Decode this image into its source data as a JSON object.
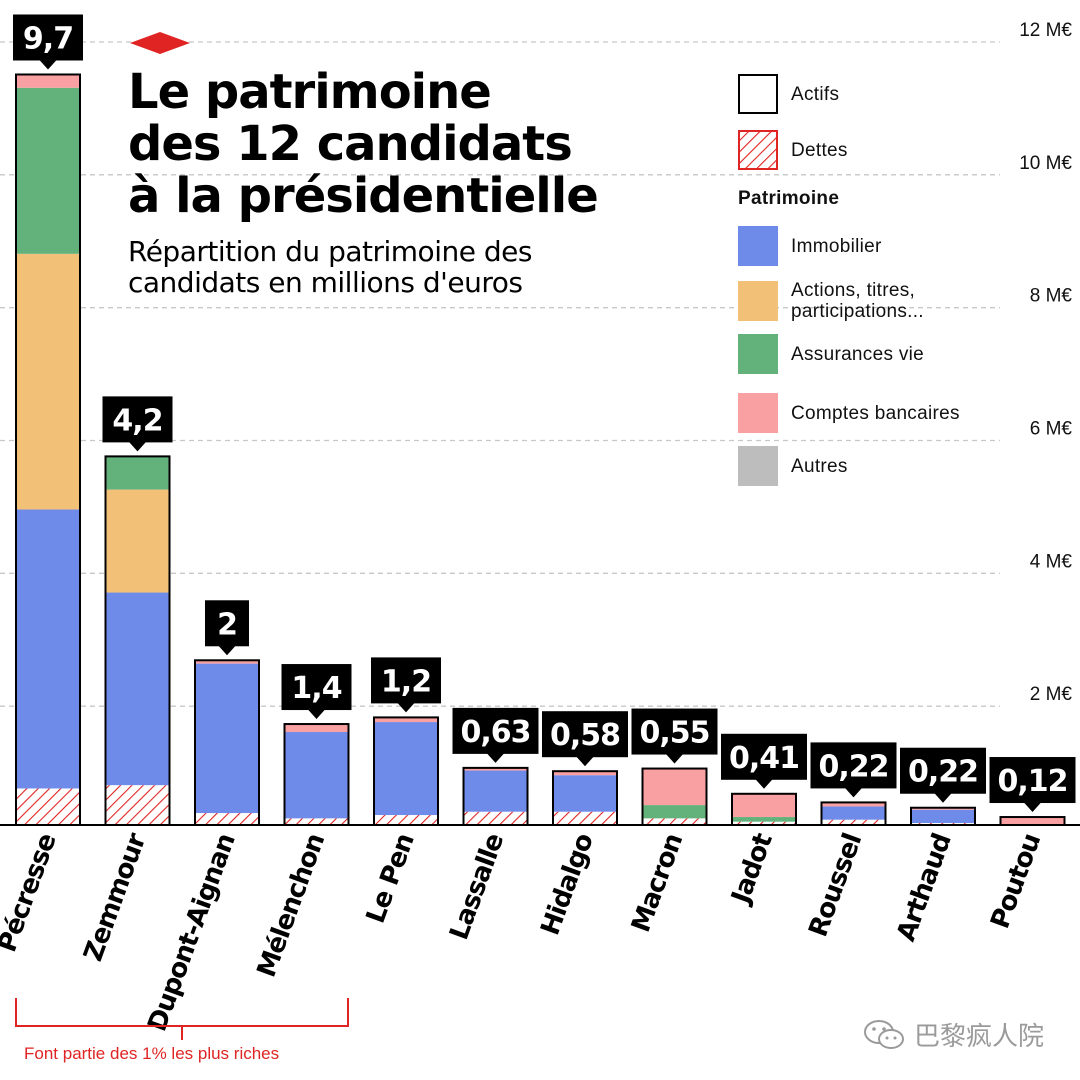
{
  "title_lines": [
    "Le patrimoine",
    "des 12 candidats",
    "à la présidentielle"
  ],
  "subtitle_lines": [
    "Répartition du patrimoine des",
    "candidats en millions d'euros"
  ],
  "legend": {
    "actifs": "Actifs",
    "dettes": "Dettes",
    "patrimoine_heading": "Patrimoine",
    "immobilier": "Immobilier",
    "actions_line1": "Actions, titres,",
    "actions_line2": "participations...",
    "assurances": "Assurances vie",
    "comptes": "Comptes bancaires",
    "autres": "Autres"
  },
  "bracket_label": "Font partie des 1% les plus riches",
  "watermark": "巴黎疯人院",
  "colors": {
    "immobilier": "#6f8bea",
    "actions": "#f3c078",
    "assurances": "#63b27c",
    "comptes": "#f9a0a3",
    "autres": "#bdbdbd",
    "dettes": "#e02424",
    "accent": "#e02424"
  },
  "chart_data": {
    "type": "bar",
    "stacked": true,
    "title": "Le patrimoine des 12 candidats à la présidentielle",
    "subtitle": "Répartition du patrimoine des candidats en millions d'euros",
    "ylim": [
      0,
      12
    ],
    "yticks": [
      2,
      4,
      6,
      8,
      10,
      12
    ],
    "ytick_labels": [
      "2 M€",
      "4 M€",
      "6 M€",
      "8 M€",
      "10 M€",
      "12 M€"
    ],
    "categories": [
      "Pécresse",
      "Zemmour",
      "Dupont-Aignan",
      "Mélenchon",
      "Le Pen",
      "Lassalle",
      "Hidalgo",
      "Macron",
      "Jadot",
      "Roussel",
      "Arthaud",
      "Poutou"
    ],
    "net_labels": [
      "9,7",
      "4,2",
      "2",
      "1,4",
      "1,2",
      "0,63",
      "0,58",
      "0,55",
      "0,41",
      "0,22",
      "0,22",
      "0,12"
    ],
    "net_values": [
      9.7,
      4.2,
      2,
      1.4,
      1.2,
      0.63,
      0.58,
      0.55,
      0.41,
      0.22,
      0.22,
      0.12
    ],
    "series": [
      {
        "name": "Immobilier",
        "values": [
          4.2,
          2.9,
          2.25,
          1.3,
          1.4,
          0.62,
          0.55,
          0.0,
          0.0,
          0.2,
          0.2,
          0.0
        ]
      },
      {
        "name": "Actions, titres, participations...",
        "values": [
          3.85,
          1.55,
          0.0,
          0.0,
          0.0,
          0.0,
          0.0,
          0.0,
          0.0,
          0.0,
          0.0,
          0.0
        ]
      },
      {
        "name": "Assurances vie",
        "values": [
          2.5,
          0.5,
          0.0,
          0.0,
          0.0,
          0.0,
          0.0,
          0.2,
          0.07,
          0.0,
          0.0,
          0.0
        ]
      },
      {
        "name": "Comptes bancaires",
        "values": [
          0.2,
          0.0,
          0.05,
          0.12,
          0.07,
          0.04,
          0.06,
          0.55,
          0.35,
          0.06,
          0.03,
          0.12
        ]
      },
      {
        "name": "Autres",
        "values": [
          0,
          0,
          0,
          0,
          0,
          0,
          0,
          0,
          0,
          0,
          0,
          0
        ]
      }
    ],
    "dettes": [
      0.55,
      0.6,
      0.18,
      0.1,
      0.15,
      0.2,
      0.2,
      0.1,
      0.05,
      0.08,
      0.03,
      0.0
    ],
    "bracket_categories": [
      "Pécresse",
      "Zemmour",
      "Dupont-Aignan"
    ]
  }
}
